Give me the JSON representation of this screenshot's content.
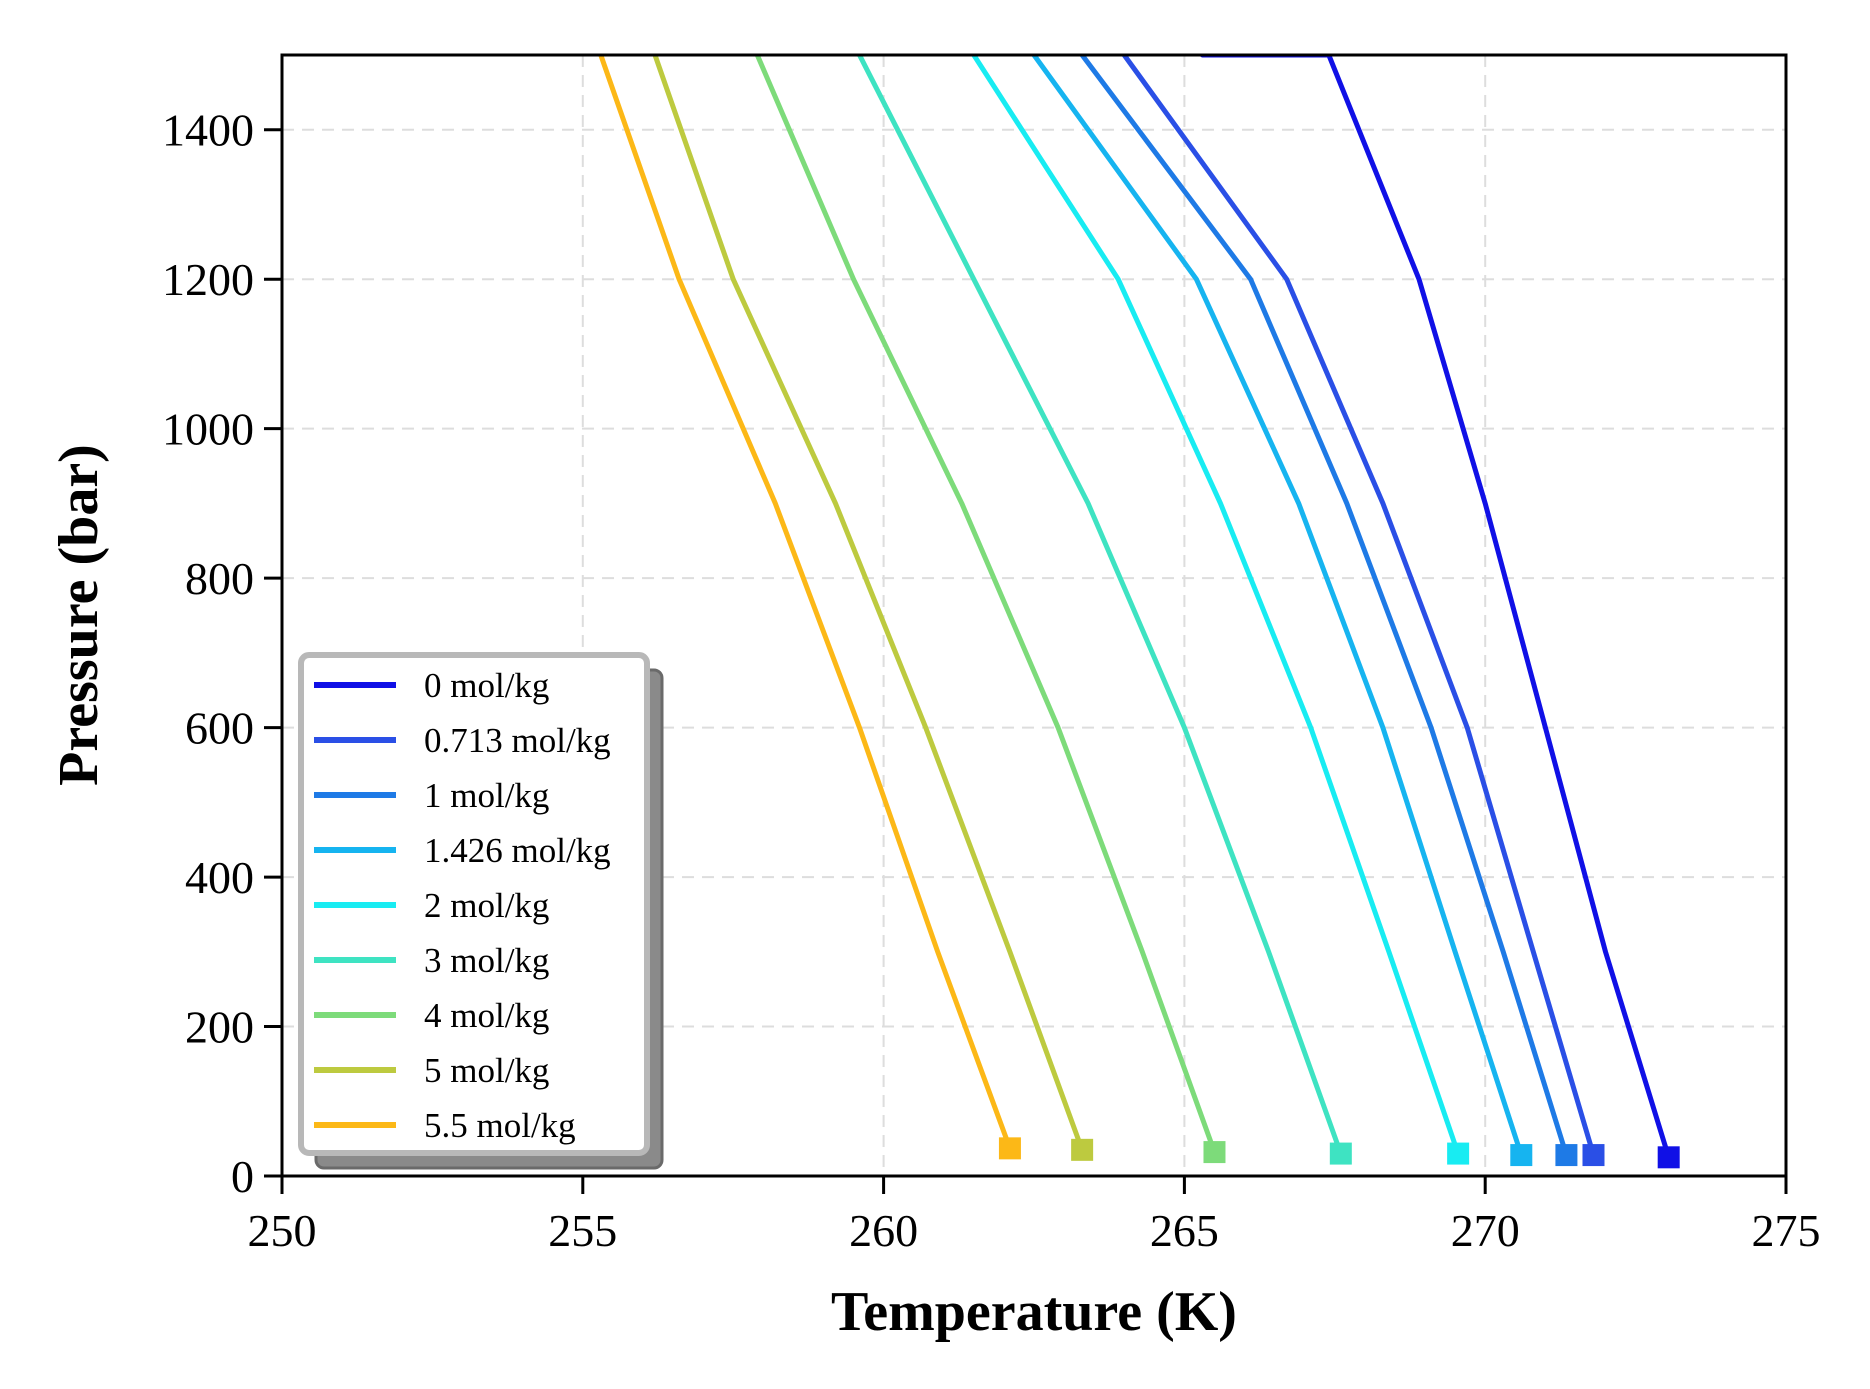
{
  "chart_data": {
    "type": "line",
    "title": "",
    "xlabel": "Temperature (K)",
    "ylabel": "Pressure (bar)",
    "xlim": [
      250,
      275
    ],
    "ylim": [
      0,
      1500
    ],
    "xticks": [
      "250",
      "255",
      "260",
      "265",
      "270",
      "275"
    ],
    "yticks": [
      "0",
      "200",
      "400",
      "600",
      "800",
      "1000",
      "1200",
      "1400"
    ],
    "grid": true,
    "legend_position": "lower-left",
    "series": [
      {
        "name": "0 mol/kg",
        "color": "#1010e6",
        "x": [
          273.05,
          272.0,
          271.0,
          270.0,
          268.9,
          267.4,
          265.3
        ],
        "y": [
          25,
          300,
          600,
          900,
          1200,
          1500,
          1500
        ],
        "marker": {
          "x": 273.05,
          "y": 25
        }
      },
      {
        "name": "0.713 mol/kg",
        "color": "#2a4fe6",
        "x": [
          271.8,
          270.8,
          269.7,
          268.3,
          266.7,
          264.0
        ],
        "y": [
          28,
          300,
          600,
          900,
          1200,
          1500
        ],
        "marker": {
          "x": 271.8,
          "y": 28
        }
      },
      {
        "name": "1 mol/kg",
        "color": "#1e7ae6",
        "x": [
          271.35,
          270.3,
          269.1,
          267.7,
          266.1,
          263.3
        ],
        "y": [
          28,
          300,
          600,
          900,
          1200,
          1500
        ],
        "marker": {
          "x": 271.35,
          "y": 28
        }
      },
      {
        "name": "1.426 mol/kg",
        "color": "#16b4f0",
        "x": [
          270.6,
          269.5,
          268.3,
          266.9,
          265.2,
          262.5
        ],
        "y": [
          28,
          300,
          600,
          900,
          1200,
          1500
        ],
        "marker": {
          "x": 270.6,
          "y": 28
        }
      },
      {
        "name": "2 mol/kg",
        "color": "#18ecf2",
        "x": [
          269.55,
          268.4,
          267.1,
          265.6,
          263.9,
          261.5
        ],
        "y": [
          30,
          300,
          600,
          900,
          1200,
          1500
        ],
        "marker": {
          "x": 269.55,
          "y": 30
        }
      },
      {
        "name": "3 mol/kg",
        "color": "#3ee3c2",
        "x": [
          267.6,
          266.4,
          265.0,
          263.4,
          261.5,
          259.6
        ],
        "y": [
          30,
          300,
          600,
          900,
          1200,
          1500
        ],
        "marker": {
          "x": 267.6,
          "y": 30
        }
      },
      {
        "name": "4 mol/kg",
        "color": "#7ddb7a",
        "x": [
          265.5,
          264.3,
          262.9,
          261.3,
          259.5,
          257.9
        ],
        "y": [
          32,
          300,
          600,
          900,
          1200,
          1500
        ],
        "marker": {
          "x": 265.5,
          "y": 32
        }
      },
      {
        "name": "5 mol/kg",
        "color": "#bdca3f",
        "x": [
          263.3,
          262.1,
          260.7,
          259.2,
          257.5,
          256.2
        ],
        "y": [
          35,
          300,
          600,
          900,
          1200,
          1500
        ],
        "marker": {
          "x": 263.3,
          "y": 35
        }
      },
      {
        "name": "5.5 mol/kg",
        "color": "#fcb817",
        "x": [
          262.1,
          260.9,
          259.6,
          258.2,
          256.6,
          255.3
        ],
        "y": [
          37,
          300,
          600,
          900,
          1200,
          1500
        ],
        "marker": {
          "x": 262.1,
          "y": 37
        }
      }
    ]
  }
}
